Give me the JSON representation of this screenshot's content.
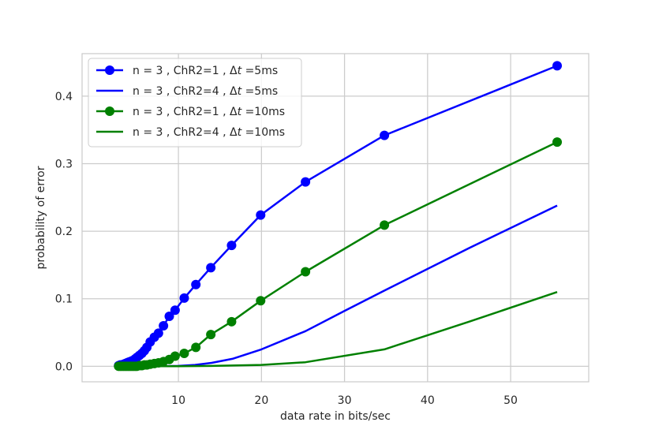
{
  "chart_data": {
    "type": "line",
    "xlabel": "data rate in bits/sec",
    "ylabel": "probability of error",
    "xlim": [
      -1.6,
      59.4
    ],
    "ylim": [
      -0.023,
      0.463
    ],
    "xticks": [
      10,
      20,
      30,
      40,
      50
    ],
    "yticks": [
      0.0,
      0.1,
      0.2,
      0.3,
      0.4
    ],
    "xtick_labels": [
      "10",
      "20",
      "30",
      "40",
      "50"
    ],
    "ytick_labels": [
      "0.0",
      "0.1",
      "0.2",
      "0.3",
      "0.4"
    ],
    "grid": true,
    "legend_position": "top-left",
    "series": [
      {
        "name": "n = 3 , ChR2=1 , Δt =5ms",
        "legend_parts": {
          "prefix": "n = 3 , ChR2=1 , Δ",
          "italic": "t",
          "suffix": " =5ms"
        },
        "color": "#0000ff",
        "markers": true,
        "x": [
          2.8,
          3.0,
          3.2,
          3.4,
          3.6,
          3.8,
          4.0,
          4.2,
          4.4,
          4.6,
          4.8,
          5.0,
          5.3,
          5.6,
          5.9,
          6.2,
          6.6,
          7.1,
          7.6,
          8.2,
          8.9,
          9.6,
          10.7,
          12.1,
          13.9,
          16.4,
          19.9,
          25.3,
          34.8,
          55.6
        ],
        "y": [
          0.001,
          0.002,
          0.002,
          0.003,
          0.004,
          0.005,
          0.006,
          0.007,
          0.008,
          0.009,
          0.011,
          0.013,
          0.016,
          0.019,
          0.023,
          0.028,
          0.036,
          0.043,
          0.049,
          0.06,
          0.074,
          0.083,
          0.101,
          0.121,
          0.146,
          0.179,
          0.224,
          0.273,
          0.342,
          0.445
        ]
      },
      {
        "name": "n = 3 , ChR2=4 , Δt =5ms",
        "legend_parts": {
          "prefix": "n = 3 , ChR2=4 , Δ",
          "italic": "t",
          "suffix": " =5ms"
        },
        "color": "#0000ff",
        "markers": false,
        "x": [
          2.8,
          5.0,
          8.0,
          10.0,
          12.0,
          14.0,
          16.5,
          20.0,
          25.3,
          30.0,
          34.8,
          45.0,
          55.6
        ],
        "y": [
          0.0,
          0.0,
          0.0,
          0.0005,
          0.002,
          0.005,
          0.011,
          0.025,
          0.052,
          0.082,
          0.112,
          0.175,
          0.238
        ]
      },
      {
        "name": "n = 3 , ChR2=1 , Δt =10ms",
        "legend_parts": {
          "prefix": "n = 3 , ChR2=1 , Δ",
          "italic": "t",
          "suffix": " =10ms"
        },
        "color": "#008000",
        "markers": true,
        "x": [
          2.8,
          3.0,
          3.2,
          3.4,
          3.6,
          3.8,
          4.0,
          4.2,
          4.4,
          4.6,
          4.8,
          5.0,
          5.3,
          5.6,
          5.9,
          6.2,
          6.6,
          7.1,
          7.6,
          8.2,
          8.9,
          9.6,
          10.7,
          12.1,
          13.9,
          16.4,
          19.9,
          25.3,
          34.8,
          55.6
        ],
        "y": [
          0.0,
          0.0,
          0.0,
          0.0,
          0.0,
          0.0,
          0.0,
          0.0,
          0.0,
          0.0,
          0.0,
          0.0,
          0.001,
          0.001,
          0.002,
          0.002,
          0.003,
          0.004,
          0.005,
          0.007,
          0.01,
          0.015,
          0.019,
          0.028,
          0.047,
          0.066,
          0.097,
          0.14,
          0.209,
          0.332
        ]
      },
      {
        "name": "n = 3 , ChR2=4 , Δt =10ms",
        "legend_parts": {
          "prefix": "n = 3 , ChR2=4 , Δ",
          "italic": "t",
          "suffix": " =10ms"
        },
        "color": "#008000",
        "markers": false,
        "x": [
          2.8,
          10.0,
          14.0,
          20.0,
          25.3,
          34.8,
          45.0,
          55.6
        ],
        "y": [
          0.0,
          0.0,
          0.0005,
          0.002,
          0.006,
          0.025,
          0.066,
          0.11
        ]
      }
    ]
  }
}
